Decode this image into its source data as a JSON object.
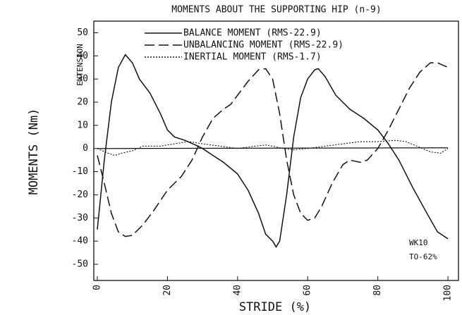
{
  "chart_data": {
    "type": "line",
    "title": "MOMENTS ABOUT THE SUPPORTING HIP (n-9)",
    "x_label": "STRIDE (%)",
    "y_label": "MOMENTS (Nm)",
    "annotations": [
      "EXTENSION",
      "WK10",
      "TO-62%"
    ],
    "xlim": [
      -1,
      103
    ],
    "ylim": [
      -57,
      55
    ],
    "xticks": [
      0,
      20,
      40,
      60,
      80,
      100
    ],
    "yticks": [
      -50,
      -40,
      -30,
      -20,
      -10,
      0,
      10,
      20,
      30,
      40,
      50
    ],
    "grid": false,
    "series": [
      {
        "name": "BALANCE MOMENT (RMS-22.9)",
        "color": "#111",
        "dash": "solid",
        "x": [
          0,
          2,
          4,
          6,
          8,
          10,
          12,
          15,
          18,
          20,
          22,
          25,
          28,
          30,
          33,
          36,
          40,
          43,
          46,
          48,
          50,
          51,
          52,
          54,
          56,
          58,
          60,
          62,
          63,
          65,
          68,
          72,
          76,
          80,
          83,
          86,
          90,
          94,
          97,
          100
        ],
        "values": [
          -35,
          -5,
          20,
          35,
          40.5,
          37,
          30,
          24,
          15,
          8,
          5,
          3.5,
          1.5,
          0,
          -3,
          -6,
          -11,
          -18,
          -28,
          -37,
          -40,
          -42.5,
          -40,
          -20,
          5,
          22,
          30,
          34,
          34.5,
          31,
          23,
          17,
          13,
          8,
          2,
          -5,
          -17,
          -28,
          -36,
          -39
        ]
      },
      {
        "name": "UNBALANCING MOMENT (RMS-22.9)",
        "color": "#111",
        "dash": "dashed",
        "x": [
          0,
          2,
          4,
          6,
          8,
          10,
          13,
          16,
          20,
          24,
          27,
          30,
          33,
          36,
          38,
          40,
          43,
          46,
          48,
          50,
          52,
          54,
          56,
          58,
          60,
          62,
          64,
          67,
          70,
          72,
          75,
          77,
          80,
          83,
          86,
          89,
          92,
          95,
          97,
          100
        ],
        "values": [
          -3,
          -15,
          -28,
          -36,
          -38,
          -37.5,
          -33,
          -27,
          -18,
          -12,
          -5,
          5,
          13,
          17,
          19,
          23,
          29,
          34,
          34.5,
          30,
          15,
          -5,
          -20,
          -28,
          -31,
          -30,
          -25,
          -15,
          -7,
          -5,
          -6,
          -5,
          0,
          8,
          17,
          26,
          33,
          37,
          37,
          35
        ]
      },
      {
        "name": "INERTIAL MOMENT (RMS-1.7)",
        "color": "#111",
        "dash": "dotted",
        "x": [
          0,
          3,
          5,
          7,
          10,
          13,
          18,
          22,
          26,
          30,
          35,
          40,
          45,
          48,
          50,
          53,
          56,
          60,
          65,
          70,
          75,
          80,
          85,
          88,
          92,
          95,
          98,
          100
        ],
        "values": [
          0,
          -2,
          -3,
          -2,
          -1,
          1,
          1,
          2,
          3,
          2,
          1,
          0,
          1,
          1.5,
          1,
          0,
          -0.5,
          0,
          1,
          2,
          3,
          3,
          3.5,
          3,
          0.5,
          -1.5,
          -2,
          0
        ]
      }
    ]
  }
}
